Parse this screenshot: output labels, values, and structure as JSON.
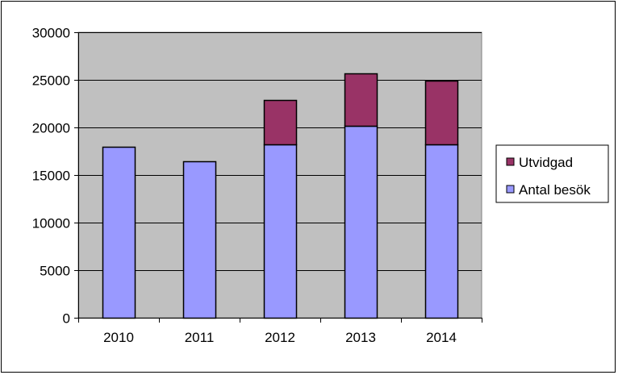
{
  "chart_data": {
    "type": "bar",
    "stacked": true,
    "categories": [
      "2010",
      "2011",
      "2012",
      "2013",
      "2014"
    ],
    "series": [
      {
        "name": "Antal besök",
        "values": [
          18000,
          16400,
          18200,
          20200,
          18200
        ],
        "color": "#9999ff"
      },
      {
        "name": "Utvidgad",
        "values": [
          0,
          0,
          4700,
          5500,
          6700
        ],
        "color": "#993366"
      }
    ],
    "ylim": [
      0,
      30000
    ],
    "yticks": [
      "0",
      "5000",
      "10000",
      "15000",
      "20000",
      "25000",
      "30000"
    ],
    "grid": true,
    "plot_background": "#c0c0c0",
    "legend_position": "right",
    "legend": [
      "Utvidgad",
      "Antal besök"
    ]
  }
}
